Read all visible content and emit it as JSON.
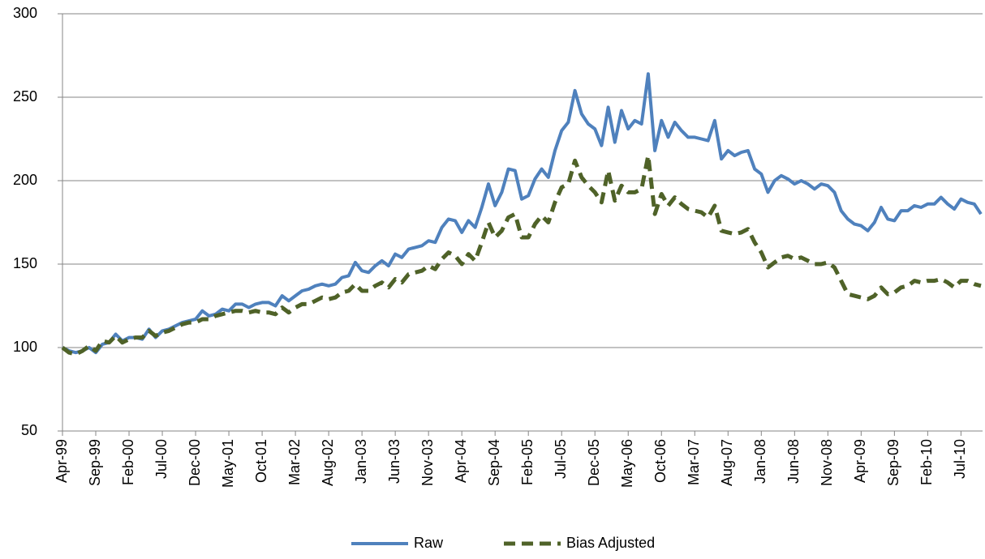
{
  "chart_data": {
    "type": "line",
    "categories": [
      "Apr-99",
      null,
      null,
      null,
      null,
      "Sep-99",
      null,
      null,
      null,
      null,
      "Feb-00",
      null,
      null,
      null,
      null,
      "Jul-00",
      null,
      null,
      null,
      null,
      "Dec-00",
      null,
      null,
      null,
      null,
      "May-01",
      null,
      null,
      null,
      null,
      "Oct-01",
      null,
      null,
      null,
      null,
      "Mar-02",
      null,
      null,
      null,
      null,
      "Aug-02",
      null,
      null,
      null,
      null,
      "Jan-03",
      null,
      null,
      null,
      null,
      "Jun-03",
      null,
      null,
      null,
      null,
      "Nov-03",
      null,
      null,
      null,
      null,
      "Apr-04",
      null,
      null,
      null,
      null,
      "Sep-04",
      null,
      null,
      null,
      null,
      "Feb-05",
      null,
      null,
      null,
      null,
      "Jul-05",
      null,
      null,
      null,
      null,
      "Dec-05",
      null,
      null,
      null,
      null,
      "May-06",
      null,
      null,
      null,
      null,
      "Oct-06",
      null,
      null,
      null,
      null,
      "Mar-07",
      null,
      null,
      null,
      null,
      "Aug-07",
      null,
      null,
      null,
      null,
      "Jan-08",
      null,
      null,
      null,
      null,
      "Jun-08",
      null,
      null,
      null,
      null,
      "Nov-08",
      null,
      null,
      null,
      null,
      "Apr-09",
      null,
      null,
      null,
      null,
      "Sep-09",
      null,
      null,
      null,
      null,
      "Feb-10",
      null,
      null,
      null,
      null,
      "Jul-10",
      null,
      null,
      null
    ],
    "series": [
      {
        "name": "Raw",
        "color": "#4f81bd",
        "dash": false,
        "values": [
          100,
          98,
          97,
          98,
          100,
          97,
          102,
          103,
          108,
          104,
          106,
          106,
          105,
          111,
          106,
          110,
          111,
          113,
          115,
          116,
          117,
          122,
          119,
          120,
          123,
          122,
          126,
          126,
          124,
          126,
          127,
          127,
          125,
          131,
          128,
          131,
          134,
          135,
          137,
          138,
          137,
          138,
          142,
          143,
          151,
          146,
          145,
          149,
          152,
          149,
          156,
          154,
          159,
          160,
          161,
          164,
          163,
          172,
          177,
          176,
          169,
          176,
          172,
          184,
          198,
          185,
          193,
          207,
          206,
          189,
          191,
          201,
          207,
          202,
          218,
          230,
          235,
          254,
          240,
          234,
          231,
          221,
          244,
          223,
          242,
          231,
          236,
          234,
          264,
          218,
          236,
          226,
          235,
          230,
          226,
          226,
          225,
          224,
          236,
          213,
          218,
          215,
          217,
          218,
          207,
          204,
          193,
          200,
          203,
          201,
          198,
          200,
          198,
          195,
          198,
          197,
          193,
          182,
          177,
          174,
          173,
          170,
          175,
          184,
          177,
          176,
          182,
          182,
          185,
          184,
          186,
          186,
          190,
          186,
          183,
          189,
          187,
          186,
          180
        ]
      },
      {
        "name": "Bias Adjusted",
        "color": "#4f6228",
        "dash": true,
        "values": [
          100,
          97,
          96,
          98,
          101,
          98,
          104,
          103,
          107,
          103,
          105,
          106,
          106,
          110,
          107,
          109,
          110,
          112,
          114,
          115,
          115,
          117,
          117,
          119,
          120,
          121,
          122,
          122,
          121,
          122,
          121,
          121,
          120,
          124,
          121,
          124,
          126,
          126,
          128,
          130,
          129,
          130,
          133,
          134,
          138,
          134,
          134,
          137,
          139,
          136,
          141,
          139,
          144,
          145,
          146,
          149,
          147,
          153,
          157,
          155,
          150,
          156,
          152,
          163,
          175,
          166,
          170,
          178,
          180,
          166,
          166,
          174,
          179,
          175,
          187,
          196,
          198,
          212,
          202,
          197,
          193,
          187,
          206,
          188,
          197,
          193,
          193,
          195,
          215,
          180,
          192,
          185,
          190,
          186,
          183,
          182,
          181,
          178,
          185,
          170,
          169,
          168,
          169,
          171,
          163,
          157,
          148,
          151,
          154,
          155,
          153,
          154,
          152,
          150,
          150,
          151,
          148,
          140,
          132,
          131,
          130,
          129,
          131,
          136,
          132,
          133,
          136,
          137,
          140,
          139,
          140,
          140,
          141,
          139,
          136,
          140,
          140,
          138,
          137
        ]
      }
    ],
    "ylim": [
      50,
      300
    ],
    "yticks": [
      50,
      100,
      150,
      200,
      250,
      300
    ],
    "grid": true,
    "legend": "bottom"
  }
}
